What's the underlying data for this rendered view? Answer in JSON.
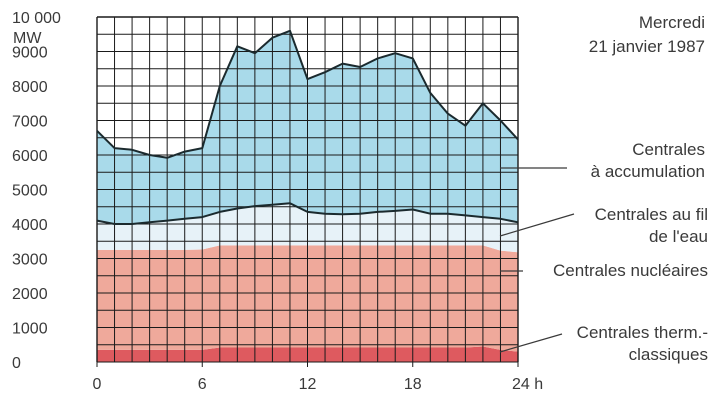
{
  "chart_data": {
    "type": "area",
    "title": [
      "Mercredi",
      "21 janvier 1987"
    ],
    "ylabel": "MW",
    "xlabel": "",
    "xlim": [
      0,
      24
    ],
    "ylim": [
      0,
      10000
    ],
    "x_ticks": [
      0,
      6,
      12,
      18,
      24
    ],
    "x_tick_labels": [
      "0",
      "6",
      "12",
      "18",
      "24 h"
    ],
    "y_ticks": [
      0,
      1000,
      2000,
      3000,
      4000,
      5000,
      6000,
      7000,
      8000,
      9000,
      10000
    ],
    "y_tick_labels": [
      "0",
      "1000",
      "2000",
      "3000",
      "4000",
      "5000",
      "6000",
      "7000",
      "8000",
      "9000",
      "10 000"
    ],
    "grid": true,
    "stacked": true,
    "x": [
      0,
      1,
      2,
      3,
      4,
      5,
      6,
      7,
      8,
      9,
      10,
      11,
      12,
      13,
      14,
      15,
      16,
      17,
      18,
      19,
      20,
      21,
      22,
      23,
      24
    ],
    "series": [
      {
        "name": "Centrales therm.- classiques",
        "color": "#de5a5f",
        "cumulative": [
          350,
          350,
          350,
          350,
          350,
          350,
          350,
          420,
          420,
          420,
          420,
          420,
          420,
          420,
          420,
          420,
          420,
          420,
          420,
          420,
          420,
          420,
          450,
          350,
          300
        ]
      },
      {
        "name": "Centrales nucléaires",
        "color": "#efa99b",
        "cumulative": [
          3250,
          3250,
          3250,
          3250,
          3250,
          3250,
          3260,
          3380,
          3380,
          3380,
          3380,
          3380,
          3380,
          3380,
          3380,
          3380,
          3380,
          3380,
          3380,
          3380,
          3380,
          3380,
          3380,
          3230,
          3180
        ]
      },
      {
        "name": "Centrales au fil de l'eau",
        "color": "#e7f2f8",
        "cumulative": [
          4100,
          4000,
          4000,
          4050,
          4100,
          4150,
          4200,
          4350,
          4450,
          4520,
          4560,
          4600,
          4350,
          4300,
          4280,
          4300,
          4350,
          4380,
          4420,
          4300,
          4300,
          4250,
          4200,
          4150,
          4050
        ]
      },
      {
        "name": "Centrales à accumulation",
        "color": "#a9daea",
        "cumulative": [
          6700,
          6200,
          6150,
          6000,
          5920,
          6100,
          6200,
          8000,
          9150,
          8950,
          9400,
          9600,
          8200,
          8400,
          8650,
          8550,
          8800,
          8950,
          8800,
          7800,
          7200,
          6850,
          7500,
          7000,
          6450
        ]
      }
    ],
    "labels": {
      "accumulation": [
        "Centrales",
        "à accumulation"
      ],
      "fil_eau": [
        "Centrales au fil",
        "de l'eau"
      ],
      "nucleaires": [
        "Centrales nucléaires"
      ],
      "thermiques": [
        "Centrales therm.-",
        "classiques"
      ]
    }
  }
}
